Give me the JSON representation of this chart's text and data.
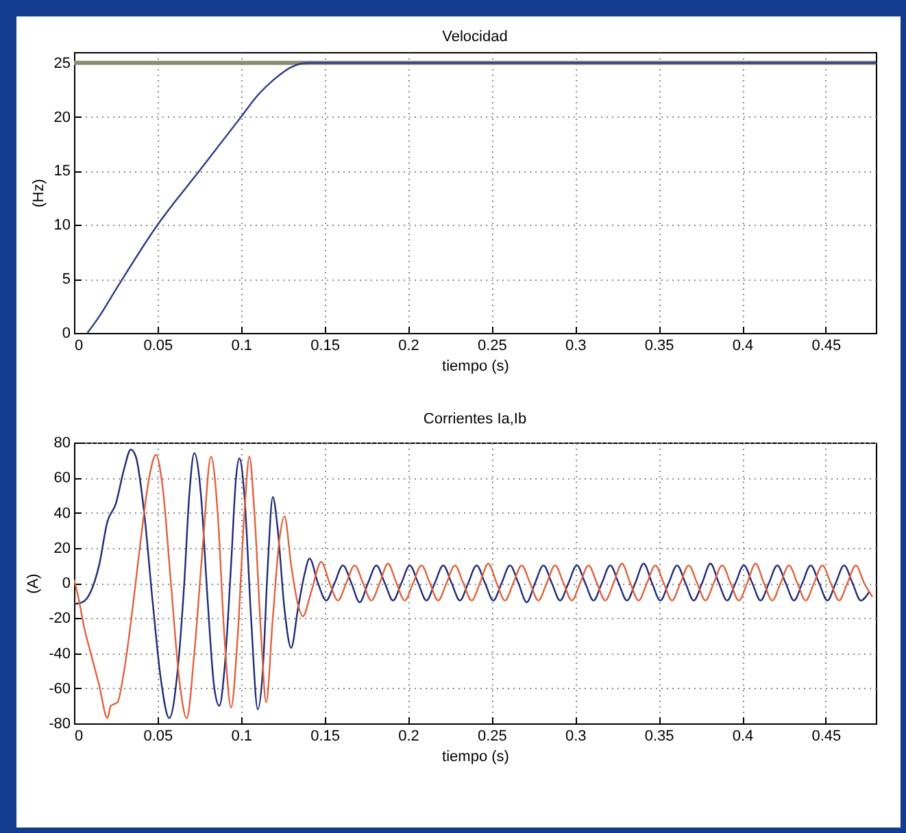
{
  "chart_data": [
    {
      "type": "line",
      "title": "Velocidad",
      "xlabel": "tiempo (s)",
      "ylabel": "(Hz)",
      "xlim": [
        0,
        0.48
      ],
      "xticks": [
        0,
        0.05,
        0.1,
        0.15,
        0.2,
        0.25,
        0.3,
        0.35,
        0.4,
        0.45
      ],
      "ylim": [
        0,
        26
      ],
      "yticks": [
        0,
        5,
        10,
        15,
        20,
        25
      ],
      "grid": true,
      "ref_lines": [
        {
          "axis": "y",
          "value": 25,
          "color": "#8c8c74"
        }
      ],
      "series": [
        {
          "color": "#2b3a86",
          "x": [
            0.008,
            0.015,
            0.025,
            0.05,
            0.075,
            0.1,
            0.11,
            0.12,
            0.13,
            0.14,
            0.15,
            0.2,
            0.25,
            0.3,
            0.35,
            0.4,
            0.45,
            0.48
          ],
          "values": [
            0,
            1.5,
            4,
            10,
            15,
            20,
            22,
            23.5,
            24.6,
            25,
            25,
            25,
            25,
            25,
            25,
            25,
            25,
            25
          ]
        }
      ]
    },
    {
      "type": "line",
      "title": "Corrientes Ia,Ib",
      "xlabel": "tiempo (s)",
      "ylabel": "(A)",
      "xlim": [
        0,
        0.48
      ],
      "xticks": [
        0,
        0.05,
        0.1,
        0.15,
        0.2,
        0.25,
        0.3,
        0.35,
        0.4,
        0.45
      ],
      "ylim": [
        -80,
        80
      ],
      "yticks": [
        -80,
        -60,
        -40,
        -20,
        0,
        20,
        40,
        60,
        80
      ],
      "grid": true,
      "series": [
        {
          "color": "#1f2a78",
          "x": [
            0,
            0.005,
            0.01,
            0.015,
            0.02,
            0.025,
            0.03,
            0.034,
            0.037,
            0.042,
            0.047,
            0.052,
            0.057,
            0.062,
            0.066,
            0.069,
            0.072,
            0.076,
            0.08,
            0.084,
            0.087,
            0.09,
            0.094,
            0.097,
            0.099,
            0.102,
            0.106,
            0.11,
            0.113,
            0.116,
            0.119,
            0.122,
            0.126,
            0.13,
            0.134,
            0.138,
            0.141,
            0.146,
            0.151,
            0.156,
            0.161,
            0.166,
            0.171,
            0.176,
            0.181,
            0.186,
            0.191,
            0.196,
            0.201,
            0.206,
            0.211,
            0.216,
            0.221,
            0.226,
            0.231,
            0.236,
            0.241,
            0.246,
            0.251,
            0.256,
            0.261,
            0.266,
            0.271,
            0.276,
            0.281,
            0.286,
            0.291,
            0.296,
            0.301,
            0.306,
            0.311,
            0.316,
            0.321,
            0.326,
            0.331,
            0.336,
            0.341,
            0.346,
            0.351,
            0.356,
            0.361,
            0.366,
            0.371,
            0.376,
            0.381,
            0.386,
            0.391,
            0.396,
            0.401,
            0.406,
            0.411,
            0.416,
            0.421,
            0.426,
            0.431,
            0.436,
            0.441,
            0.446,
            0.451,
            0.456,
            0.461,
            0.466,
            0.471,
            0.476
          ],
          "values": [
            -12,
            -11,
            -5,
            10,
            35,
            45,
            65,
            76,
            72,
            40,
            -10,
            -55,
            -77,
            -50,
            0,
            50,
            74,
            50,
            -10,
            -60,
            -70,
            -50,
            10,
            60,
            71,
            50,
            -20,
            -72,
            -50,
            10,
            49,
            30,
            -15,
            -37,
            -15,
            5,
            14,
            0,
            -10,
            0,
            10,
            0,
            -11,
            0,
            10,
            0,
            -10,
            0,
            10,
            0,
            -10,
            0,
            10,
            0,
            -10,
            0,
            10,
            0,
            -10,
            0,
            10,
            0,
            -11,
            0,
            10,
            0,
            -10,
            0,
            10,
            0,
            -10,
            0,
            10,
            0,
            -10,
            0,
            11,
            0,
            -10,
            0,
            10,
            0,
            -10,
            0,
            11,
            0,
            -10,
            0,
            10,
            0,
            -10,
            0,
            10,
            0,
            -10,
            0,
            10,
            0,
            -10,
            0,
            10,
            0,
            -10,
            -5
          ]
        },
        {
          "color": "#e0623c",
          "x": [
            0,
            0.003,
            0.006,
            0.01,
            0.015,
            0.02,
            0.022,
            0.026,
            0.03,
            0.035,
            0.04,
            0.045,
            0.049,
            0.053,
            0.058,
            0.063,
            0.0675,
            0.072,
            0.077,
            0.082,
            0.086,
            0.09,
            0.094,
            0.098,
            0.102,
            0.105,
            0.108,
            0.112,
            0.115,
            0.119,
            0.123,
            0.126,
            0.13,
            0.134,
            0.137,
            0.142,
            0.148,
            0.153,
            0.158,
            0.163,
            0.168,
            0.173,
            0.178,
            0.183,
            0.188,
            0.193,
            0.198,
            0.203,
            0.208,
            0.213,
            0.218,
            0.223,
            0.228,
            0.233,
            0.238,
            0.243,
            0.248,
            0.253,
            0.258,
            0.263,
            0.268,
            0.273,
            0.278,
            0.283,
            0.288,
            0.293,
            0.298,
            0.303,
            0.308,
            0.313,
            0.318,
            0.323,
            0.328,
            0.333,
            0.338,
            0.343,
            0.348,
            0.353,
            0.358,
            0.363,
            0.368,
            0.373,
            0.378,
            0.383,
            0.388,
            0.393,
            0.398,
            0.403,
            0.408,
            0.413,
            0.418,
            0.423,
            0.428,
            0.433,
            0.438,
            0.443,
            0.448,
            0.453,
            0.458,
            0.463,
            0.468,
            0.473,
            0.478
          ],
          "values": [
            2,
            -10,
            -25,
            -40,
            -58,
            -77,
            -70,
            -68,
            -50,
            -15,
            25,
            60,
            73,
            55,
            0,
            -55,
            -77,
            -40,
            20,
            72,
            40,
            -30,
            -71,
            -30,
            40,
            72,
            40,
            -30,
            -68,
            -20,
            25,
            38,
            10,
            -12,
            -19,
            -5,
            12,
            0,
            -10,
            0,
            10,
            0,
            -10,
            0,
            11,
            0,
            -10,
            0,
            10,
            0,
            -10,
            0,
            10,
            0,
            -10,
            0,
            11,
            0,
            -10,
            0,
            10,
            0,
            -10,
            0,
            10,
            0,
            -10,
            0,
            10,
            0,
            -10,
            0,
            11,
            0,
            -10,
            0,
            10,
            0,
            -10,
            0,
            10,
            0,
            -10,
            0,
            10,
            0,
            -10,
            0,
            11,
            0,
            -10,
            0,
            10,
            0,
            -10,
            0,
            10,
            0,
            -10,
            0,
            10,
            0,
            -8
          ]
        }
      ]
    }
  ]
}
